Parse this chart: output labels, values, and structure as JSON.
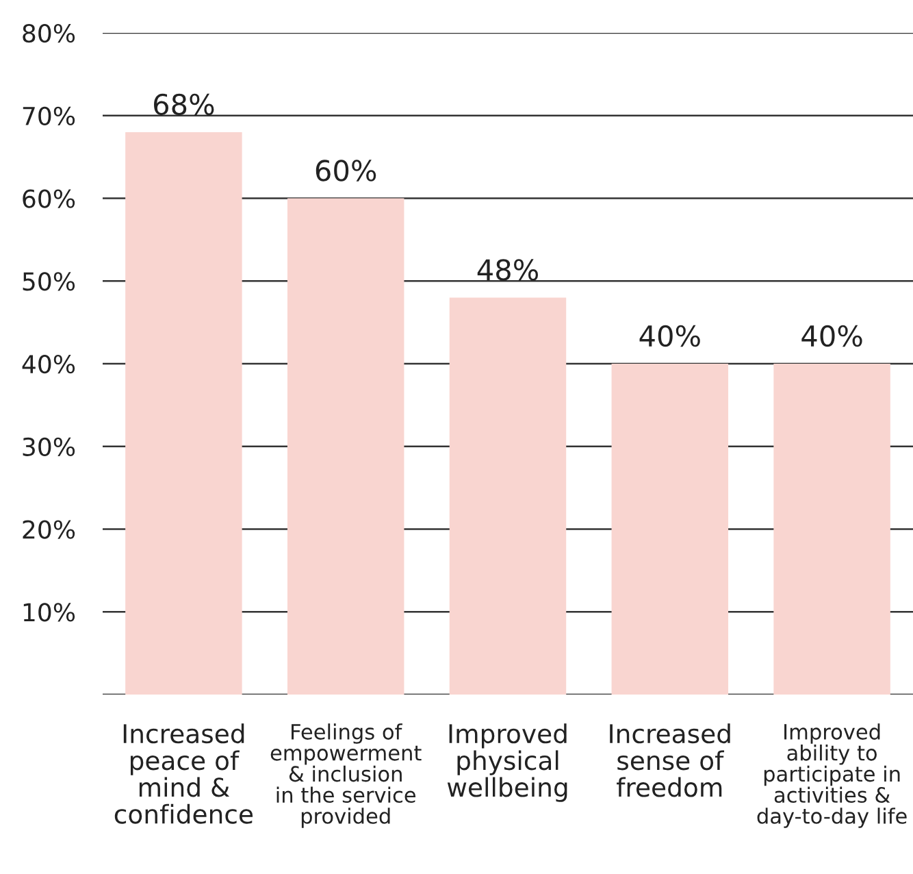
{
  "chart_data": {
    "type": "bar",
    "categories": [
      "Increased\npeace of\nmind &\nconfidence",
      "Feelings of\nempowerment\n& inclusion\nin the service\nprovided",
      "Improved\nphysical\nwellbeing",
      "Increased\nsense of\nfreedom",
      "Improved\nability to\nparticipate in\nactivities &\nday-to-day life"
    ],
    "values": [
      68,
      60,
      48,
      40,
      40
    ],
    "value_labels": [
      "68%",
      "60%",
      "48%",
      "40%",
      "40%"
    ],
    "color": "#f9d5d0",
    "ylim": [
      0,
      80
    ],
    "yticks": [
      {
        "value": 0,
        "label": null
      },
      {
        "value": 10,
        "label": "10%"
      },
      {
        "value": 20,
        "label": "20%"
      },
      {
        "value": 30,
        "label": "30%"
      },
      {
        "value": 40,
        "label": "40%"
      },
      {
        "value": 50,
        "label": "50%"
      },
      {
        "value": 60,
        "label": "60%"
      },
      {
        "value": 70,
        "label": "70%"
      },
      {
        "value": 80,
        "label": "80%"
      }
    ],
    "grid": "y"
  }
}
